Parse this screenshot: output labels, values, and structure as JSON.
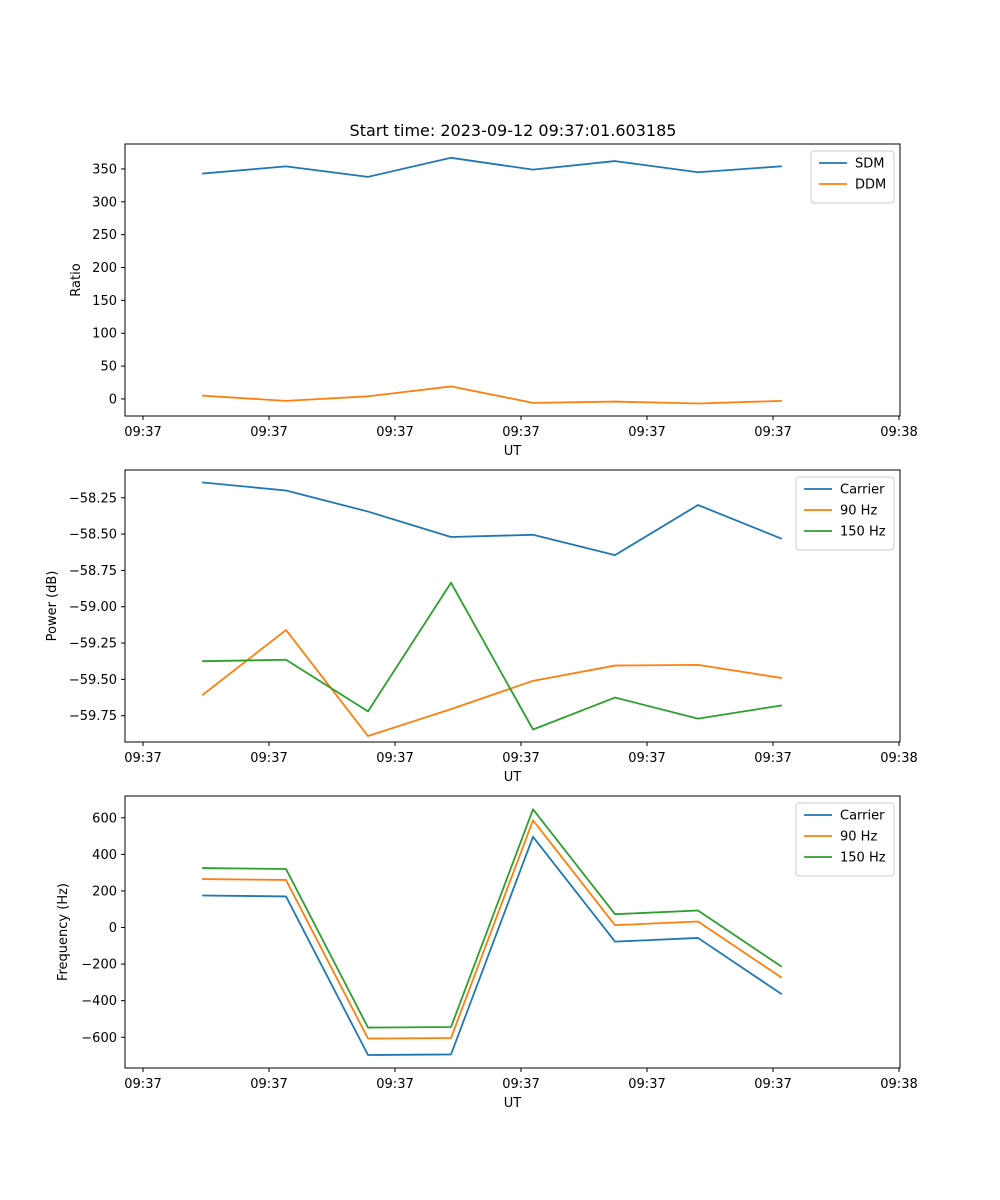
{
  "figure_title": "Start time: 2023-09-12 09:37:01.603185",
  "chart_data": [
    {
      "type": "line",
      "xlabel": "UT",
      "ylabel": "Ratio",
      "x_tick_labels": [
        "09:37",
        "09:37",
        "09:37",
        "09:37",
        "09:37",
        "09:37",
        "09:37"
      ],
      "x_last_tick_label": "09:38",
      "y_ticks": [
        0,
        50,
        100,
        150,
        200,
        250,
        300,
        350
      ],
      "y_tick_labels": [
        "0",
        "50",
        "100",
        "150",
        "200",
        "250",
        "300",
        "350"
      ],
      "ylim": [
        -26,
        388
      ],
      "legend_position": "top-right",
      "series": [
        {
          "name": "SDM",
          "color": "#1f77b4",
          "values": [
            343,
            354,
            338,
            367,
            349,
            362,
            345,
            354
          ]
        },
        {
          "name": "DDM",
          "color": "#ff7f0e",
          "values": [
            5,
            -3,
            4,
            19,
            -6,
            -4,
            -7,
            -3
          ]
        }
      ]
    },
    {
      "type": "line",
      "xlabel": "UT",
      "ylabel": "Power (dB)",
      "x_tick_labels": [
        "09:37",
        "09:37",
        "09:37",
        "09:37",
        "09:37",
        "09:37",
        "09:37"
      ],
      "x_last_tick_label": "09:38",
      "y_ticks": [
        -58.25,
        -58.5,
        -58.75,
        -59.0,
        -59.25,
        -59.5,
        -59.75
      ],
      "y_tick_labels": [
        "−58.25",
        "−58.50",
        "−58.75",
        "−59.00",
        "−59.25",
        "−59.50",
        "−59.75"
      ],
      "ylim": [
        -59.931,
        -58.059
      ],
      "legend_position": "top-right",
      "series": [
        {
          "name": "Carrier",
          "color": "#1f77b4",
          "values": [
            -58.145,
            -58.2,
            -58.345,
            -58.52,
            -58.505,
            -58.645,
            -58.3,
            -58.53
          ]
        },
        {
          "name": "90 Hz",
          "color": "#ff7f0e",
          "values": [
            -59.605,
            -59.16,
            -59.89,
            -59.705,
            -59.51,
            -59.405,
            -59.4,
            -59.49
          ]
        },
        {
          "name": "150 Hz",
          "color": "#2ca02c",
          "values": [
            -59.375,
            -59.365,
            -59.72,
            -58.835,
            -59.845,
            -59.625,
            -59.77,
            -59.68
          ]
        }
      ]
    },
    {
      "type": "line",
      "xlabel": "UT",
      "ylabel": "Frequency (Hz)",
      "x_tick_labels": [
        "09:37",
        "09:37",
        "09:37",
        "09:37",
        "09:37",
        "09:37",
        "09:37"
      ],
      "x_last_tick_label": "09:38",
      "y_ticks": [
        600,
        400,
        200,
        0,
        -200,
        -400,
        -600
      ],
      "y_tick_labels": [
        "600",
        "400",
        "200",
        "0",
        "−200",
        "−400",
        "−600"
      ],
      "ylim": [
        -768,
        719
      ],
      "legend_position": "top-right",
      "series": [
        {
          "name": "Carrier",
          "color": "#1f77b4",
          "values": [
            175,
            170,
            -697,
            -694,
            496,
            -77,
            -57,
            -362
          ]
        },
        {
          "name": "90 Hz",
          "color": "#ff7f0e",
          "values": [
            265,
            260,
            -607,
            -604,
            586,
            13,
            33,
            -272
          ]
        },
        {
          "name": "150 Hz",
          "color": "#2ca02c",
          "values": [
            325,
            320,
            -547,
            -544,
            646,
            73,
            93,
            -212
          ]
        }
      ]
    }
  ]
}
